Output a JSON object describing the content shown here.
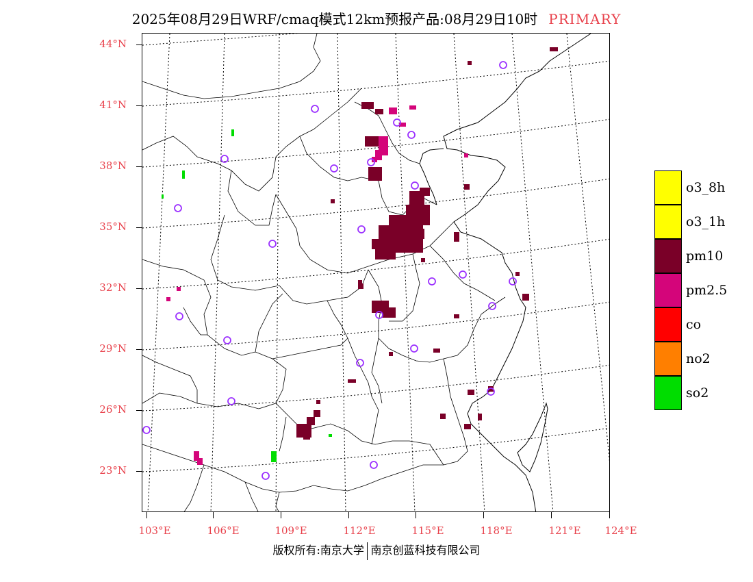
{
  "header": {
    "title": "2025年08月29日WRF/cmaq模式12km预报产品:08月29日10时",
    "tag": "PRIMARY"
  },
  "map": {
    "lat_labels": [
      "44°N",
      "41°N",
      "38°N",
      "35°N",
      "32°N",
      "29°N",
      "26°N",
      "23°N"
    ],
    "lon_labels": [
      "103°E",
      "106°E",
      "109°E",
      "112°E",
      "115°E",
      "118°E",
      "121°E",
      "124°E"
    ],
    "colors": {
      "pm10": "#7a0028",
      "pm25": "#d4057a",
      "so2": "#00dd00",
      "station": "#9b30ff",
      "coast": "#000000",
      "grid": "#000000"
    }
  },
  "legend": {
    "items": [
      {
        "label": "o3_8h",
        "color": "#ffff00"
      },
      {
        "label": "o3_1h",
        "color": "#ffff00"
      },
      {
        "label": "pm10",
        "color": "#7a0028"
      },
      {
        "label": "pm2.5",
        "color": "#d4057a"
      },
      {
        "label": "co",
        "color": "#ff0000"
      },
      {
        "label": "no2",
        "color": "#ff7f00"
      },
      {
        "label": "so2",
        "color": "#00dd00"
      }
    ]
  },
  "footer": {
    "left": "版权所有:南京大学",
    "right": "南京创蓝科技有限公司"
  }
}
